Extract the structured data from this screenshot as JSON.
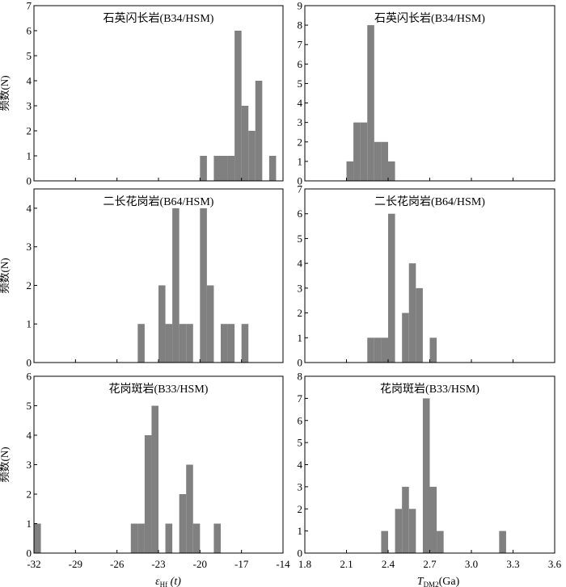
{
  "figure": {
    "left_xlabel_main": "ε",
    "left_xlabel_sub": "Hf",
    "left_xlabel_tail": " (t)",
    "right_xlabel_main": "T",
    "right_xlabel_sub": "DM2",
    "right_xlabel_tail": "(Ga)",
    "ylabel": "频数(N)",
    "bar_color": "#808080"
  },
  "chart_data": [
    {
      "id": "a",
      "type": "bar",
      "title": "石英闪长岩(B34/HSM)",
      "xlim": [
        -32,
        -14
      ],
      "ylim": [
        0,
        7
      ],
      "xticks": [
        -32,
        -29,
        -26,
        -23,
        -20,
        -17,
        -14
      ],
      "yticks": [
        0,
        1,
        2,
        3,
        4,
        5,
        6,
        7
      ],
      "bin_width": 0.5,
      "bins": [
        {
          "x": -19.75,
          "y": 1
        },
        {
          "x": -18.75,
          "y": 1
        },
        {
          "x": -18.25,
          "y": 1
        },
        {
          "x": -17.75,
          "y": 1
        },
        {
          "x": -17.25,
          "y": 6
        },
        {
          "x": -16.75,
          "y": 3
        },
        {
          "x": -16.25,
          "y": 2
        },
        {
          "x": -15.75,
          "y": 4
        },
        {
          "x": -14.75,
          "y": 1
        }
      ]
    },
    {
      "id": "b",
      "type": "bar",
      "title": "石英闪长岩(B34/HSM)",
      "xlim": [
        1.8,
        3.6
      ],
      "ylim": [
        0,
        9
      ],
      "xticks": [
        1.8,
        2.1,
        2.4,
        2.7,
        3.0,
        3.3,
        3.6
      ],
      "yticks": [
        0,
        1,
        2,
        3,
        4,
        5,
        6,
        7,
        8,
        9
      ],
      "bin_width": 0.05,
      "bins": [
        {
          "x": 2.125,
          "y": 1
        },
        {
          "x": 2.175,
          "y": 3
        },
        {
          "x": 2.225,
          "y": 3
        },
        {
          "x": 2.275,
          "y": 8
        },
        {
          "x": 2.325,
          "y": 2
        },
        {
          "x": 2.375,
          "y": 2
        },
        {
          "x": 2.425,
          "y": 1
        }
      ]
    },
    {
      "id": "c",
      "type": "bar",
      "title": "二长花岗岩(B64/HSM)",
      "xlim": [
        -32,
        -14
      ],
      "ylim": [
        0,
        4.5
      ],
      "xticks": [
        -32,
        -29,
        -26,
        -23,
        -20,
        -17,
        -14
      ],
      "yticks": [
        0,
        1,
        2,
        3,
        4
      ],
      "bin_width": 0.5,
      "bins": [
        {
          "x": -24.25,
          "y": 1
        },
        {
          "x": -22.75,
          "y": 2
        },
        {
          "x": -22.25,
          "y": 1
        },
        {
          "x": -21.75,
          "y": 4
        },
        {
          "x": -21.25,
          "y": 1
        },
        {
          "x": -20.75,
          "y": 1
        },
        {
          "x": -19.75,
          "y": 4
        },
        {
          "x": -19.25,
          "y": 2
        },
        {
          "x": -18.25,
          "y": 1
        },
        {
          "x": -17.75,
          "y": 1
        },
        {
          "x": -16.75,
          "y": 1
        }
      ]
    },
    {
      "id": "d",
      "type": "bar",
      "title": "二长花岗岩(B64/HSM)",
      "xlim": [
        1.8,
        3.6
      ],
      "ylim": [
        0,
        7
      ],
      "xticks": [
        1.8,
        2.1,
        2.4,
        2.7,
        3.0,
        3.3,
        3.6
      ],
      "yticks": [
        0,
        1,
        2,
        3,
        4,
        5,
        6,
        7
      ],
      "bin_width": 0.05,
      "bins": [
        {
          "x": 2.275,
          "y": 1
        },
        {
          "x": 2.325,
          "y": 1
        },
        {
          "x": 2.375,
          "y": 1
        },
        {
          "x": 2.425,
          "y": 6
        },
        {
          "x": 2.525,
          "y": 2
        },
        {
          "x": 2.575,
          "y": 4
        },
        {
          "x": 2.625,
          "y": 3
        },
        {
          "x": 2.725,
          "y": 1
        }
      ]
    },
    {
      "id": "e",
      "type": "bar",
      "title": "花岗斑岩(B33/HSM)",
      "xlim": [
        -32,
        -14
      ],
      "ylim": [
        0,
        6
      ],
      "xticks": [
        -32,
        -29,
        -26,
        -23,
        -20,
        -17,
        -14
      ],
      "yticks": [
        0,
        1,
        2,
        3,
        4,
        5,
        6
      ],
      "bin_width": 0.5,
      "bins": [
        {
          "x": -31.75,
          "y": 1
        },
        {
          "x": -24.75,
          "y": 1
        },
        {
          "x": -24.25,
          "y": 1
        },
        {
          "x": -23.75,
          "y": 4
        },
        {
          "x": -23.25,
          "y": 5
        },
        {
          "x": -22.25,
          "y": 1
        },
        {
          "x": -21.25,
          "y": 2
        },
        {
          "x": -20.75,
          "y": 3
        },
        {
          "x": -20.25,
          "y": 1
        },
        {
          "x": -18.75,
          "y": 1
        }
      ]
    },
    {
      "id": "f",
      "type": "bar",
      "title": "花岗斑岩(B33/HSM)",
      "xlim": [
        1.8,
        3.6
      ],
      "ylim": [
        0,
        8
      ],
      "xticks": [
        1.8,
        2.1,
        2.4,
        2.7,
        3.0,
        3.3,
        3.6
      ],
      "yticks": [
        0,
        1,
        2,
        3,
        4,
        5,
        6,
        7,
        8
      ],
      "bin_width": 0.05,
      "bins": [
        {
          "x": 2.375,
          "y": 1
        },
        {
          "x": 2.475,
          "y": 2
        },
        {
          "x": 2.525,
          "y": 3
        },
        {
          "x": 2.575,
          "y": 2
        },
        {
          "x": 2.675,
          "y": 7
        },
        {
          "x": 2.725,
          "y": 3
        },
        {
          "x": 2.775,
          "y": 1
        },
        {
          "x": 3.225,
          "y": 1
        }
      ]
    }
  ]
}
